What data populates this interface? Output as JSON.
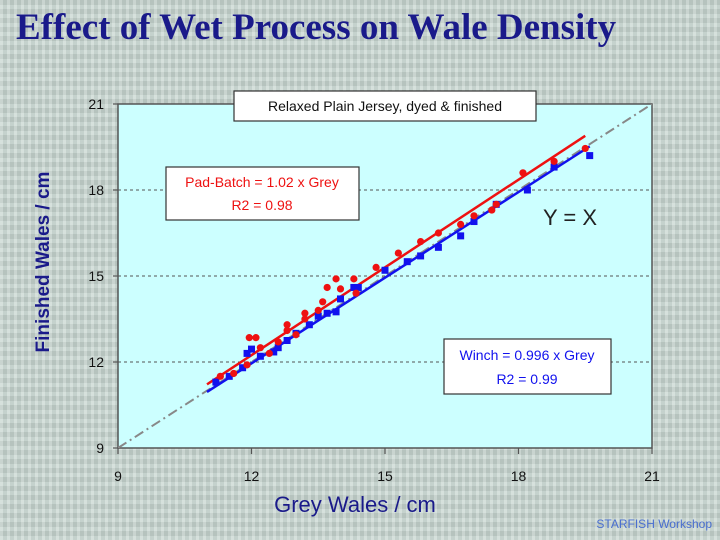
{
  "slide": {
    "title": "Effect of Wet Process on Wale Density",
    "footer": "STARFISH Workshop"
  },
  "chart_data": {
    "type": "scatter",
    "title": "Relaxed Plain Jersey, dyed & finished",
    "xlabel": "Grey Wales / cm",
    "ylabel": "Finished Wales / cm",
    "xlim": [
      9,
      21
    ],
    "ylim": [
      9,
      21
    ],
    "xticks": [
      9,
      12,
      15,
      18,
      21
    ],
    "yticks": [
      9,
      12,
      15,
      18,
      21
    ],
    "colors": {
      "plot_bg": "#ccffff",
      "pad_batch": "#ee1111",
      "winch": "#1111ee",
      "identity": "#888888",
      "axis": "#555555"
    },
    "series": [
      {
        "name": "Pad-Batch",
        "marker": "circle",
        "points": [
          [
            11.3,
            11.5
          ],
          [
            11.6,
            11.6
          ],
          [
            11.9,
            11.9
          ],
          [
            11.95,
            12.85
          ],
          [
            12.1,
            12.85
          ],
          [
            12.2,
            12.5
          ],
          [
            12.4,
            12.3
          ],
          [
            12.6,
            12.7
          ],
          [
            12.8,
            13.3
          ],
          [
            12.8,
            13.1
          ],
          [
            13.0,
            12.95
          ],
          [
            13.2,
            13.7
          ],
          [
            13.2,
            13.5
          ],
          [
            13.5,
            13.8
          ],
          [
            13.6,
            14.1
          ],
          [
            13.7,
            14.6
          ],
          [
            13.9,
            14.9
          ],
          [
            14.0,
            14.55
          ],
          [
            14.3,
            14.9
          ],
          [
            14.35,
            14.4
          ],
          [
            14.8,
            15.3
          ],
          [
            15.3,
            15.8
          ],
          [
            15.8,
            16.2
          ],
          [
            16.2,
            16.5
          ],
          [
            16.7,
            16.8
          ],
          [
            17.0,
            17.1
          ],
          [
            17.4,
            17.3
          ],
          [
            17.5,
            17.5
          ],
          [
            18.1,
            18.6
          ],
          [
            18.8,
            19.0
          ],
          [
            19.5,
            19.45
          ]
        ],
        "fit_slope": 1.02,
        "fit_label": "Pad-Batch = 1.02 x Grey",
        "r2_label": "R2 = 0.98"
      },
      {
        "name": "Winch",
        "marker": "square",
        "points": [
          [
            11.2,
            11.3
          ],
          [
            11.5,
            11.5
          ],
          [
            11.8,
            11.8
          ],
          [
            11.9,
            12.3
          ],
          [
            12.0,
            12.45
          ],
          [
            12.2,
            12.2
          ],
          [
            12.5,
            12.35
          ],
          [
            12.6,
            12.5
          ],
          [
            12.8,
            12.75
          ],
          [
            13.0,
            13.0
          ],
          [
            13.3,
            13.3
          ],
          [
            13.5,
            13.6
          ],
          [
            13.7,
            13.7
          ],
          [
            13.9,
            13.75
          ],
          [
            14.0,
            14.2
          ],
          [
            14.3,
            14.6
          ],
          [
            14.4,
            14.6
          ],
          [
            15.0,
            15.2
          ],
          [
            15.5,
            15.5
          ],
          [
            15.8,
            15.7
          ],
          [
            16.2,
            16.0
          ],
          [
            16.7,
            16.4
          ],
          [
            17.0,
            16.9
          ],
          [
            17.5,
            17.5
          ],
          [
            18.2,
            18.0
          ],
          [
            18.8,
            18.8
          ],
          [
            19.6,
            19.2
          ]
        ],
        "fit_slope": 0.996,
        "fit_label": "Winch = 0.996 x Grey",
        "r2_label": "R2 = 0.99"
      }
    ],
    "reference_line": {
      "label": "Y = X",
      "slope": 1
    }
  }
}
